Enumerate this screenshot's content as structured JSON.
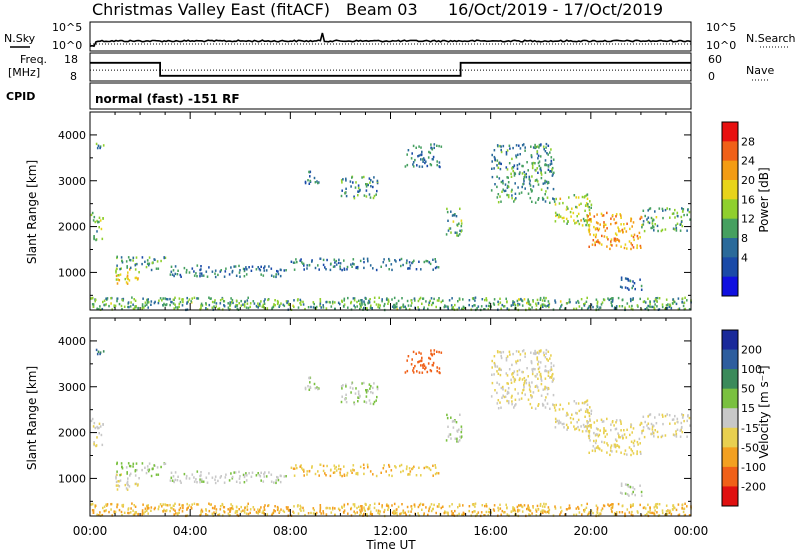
{
  "title": {
    "station": "Christmas Valley East (fitACF)",
    "beam": "Beam 03",
    "dates": "16/Oct/2019 - 17/Oct/2019"
  },
  "colors": {
    "frame": "#000000",
    "background": "#ffffff",
    "noise_line": "#000000"
  },
  "strips": {
    "nsky_label": "N.Sky",
    "nsearch_label": "N.Search",
    "noise_ticks_left": [
      "10^5",
      "10^0"
    ],
    "noise_ticks_right": [
      "10^5",
      "10^0"
    ],
    "freq_label_1": "Freq.",
    "freq_label_2": "[MHz]",
    "freq_ticks": [
      "18",
      "8"
    ],
    "nave_label": "Nave",
    "nave_ticks": [
      "60",
      "0"
    ],
    "cpid_label": "CPID",
    "cpid_text": "normal (fast) -151 RF",
    "freq_steps_mhz": [
      {
        "from_h": 0,
        "to_h": 2.8,
        "mhz": 15
      },
      {
        "from_h": 2.8,
        "to_h": 14.8,
        "mhz": 10
      },
      {
        "from_h": 14.8,
        "to_h": 24,
        "mhz": 15
      }
    ],
    "nave_level": 25
  },
  "power_panel": {
    "ylabel": "Slant Range [km]",
    "cbar_label": "Power [dB]",
    "cbar_ticks": [
      "28",
      "24",
      "20",
      "16",
      "12",
      "8",
      "4"
    ],
    "cbar_colors": [
      "#e81010",
      "#f06018",
      "#f39c14",
      "#e8d41a",
      "#8fcf2e",
      "#46a060",
      "#2a6a9a",
      "#1a4aa8",
      "#1010e0"
    ]
  },
  "velocity_panel": {
    "ylabel": "Slant Range [km]",
    "cbar_label": "Velocity [m s⁻¹]",
    "cbar_ticks": [
      "200",
      "100",
      "50",
      "15",
      "-15",
      "-50",
      "-100",
      "-200"
    ],
    "cbar_colors": [
      "#1a2a9a",
      "#2e5e9e",
      "#3a8a5a",
      "#7ac040",
      "#c8c8c8",
      "#e8d050",
      "#f3a020",
      "#f06018",
      "#e01010"
    ]
  },
  "yticks": [
    "4000",
    "3000",
    "2000",
    "1000"
  ],
  "xticks": [
    "00:00",
    "04:00",
    "08:00",
    "12:00",
    "16:00",
    "20:00",
    "00:00"
  ],
  "xlabel": "Time UT",
  "chart_data": {
    "type": "heatmap",
    "x_range_hours": [
      0,
      24
    ],
    "y_range_km": [
      180,
      4500
    ],
    "regions": [
      {
        "t0": 0.0,
        "t1": 0.5,
        "r0": 1700,
        "r1": 2300,
        "power": 14,
        "vel": 10
      },
      {
        "t0": 0.2,
        "t1": 0.6,
        "r0": 3700,
        "r1": 3900,
        "power": 10,
        "vel": 150
      },
      {
        "t0": 1.0,
        "t1": 2.0,
        "r0": 700,
        "r1": 1100,
        "power": 18,
        "vel": 0
      },
      {
        "t0": 1.0,
        "t1": 3.0,
        "r0": 1050,
        "r1": 1350,
        "power": 10,
        "vel": 40
      },
      {
        "t0": 3.0,
        "t1": 8.0,
        "r0": 900,
        "r1": 1150,
        "power": 8,
        "vel": 25
      },
      {
        "t0": 8.0,
        "t1": 14.0,
        "r0": 1050,
        "r1": 1300,
        "power": 8,
        "vel": -30
      },
      {
        "t0": 8.5,
        "t1": 9.2,
        "r0": 2900,
        "r1": 3200,
        "power": 8,
        "vel": 30
      },
      {
        "t0": 10.0,
        "t1": 11.5,
        "r0": 2600,
        "r1": 3100,
        "power": 10,
        "vel": 30
      },
      {
        "t0": 12.5,
        "t1": 14.0,
        "r0": 3300,
        "r1": 3800,
        "power": 8,
        "vel": -120
      },
      {
        "t0": 14.2,
        "t1": 14.9,
        "r0": 1800,
        "r1": 2400,
        "power": 12,
        "vel": 30
      },
      {
        "t0": 16.0,
        "t1": 18.5,
        "r0": 2500,
        "r1": 3800,
        "power": 10,
        "vel": 0
      },
      {
        "t0": 18.5,
        "t1": 20.0,
        "r0": 2000,
        "r1": 2700,
        "power": 16,
        "vel": 0
      },
      {
        "t0": 19.8,
        "t1": 22.0,
        "r0": 1500,
        "r1": 2300,
        "power": 22,
        "vel": -10
      },
      {
        "t0": 22.0,
        "t1": 24.0,
        "r0": 1900,
        "r1": 2400,
        "power": 12,
        "vel": 5
      },
      {
        "t0": 21.0,
        "t1": 22.0,
        "r0": 600,
        "r1": 900,
        "power": 6,
        "vel": 20
      },
      {
        "t0": 0.0,
        "t1": 24.0,
        "r0": 180,
        "r1": 450,
        "power": 12,
        "vel": -30
      }
    ]
  }
}
